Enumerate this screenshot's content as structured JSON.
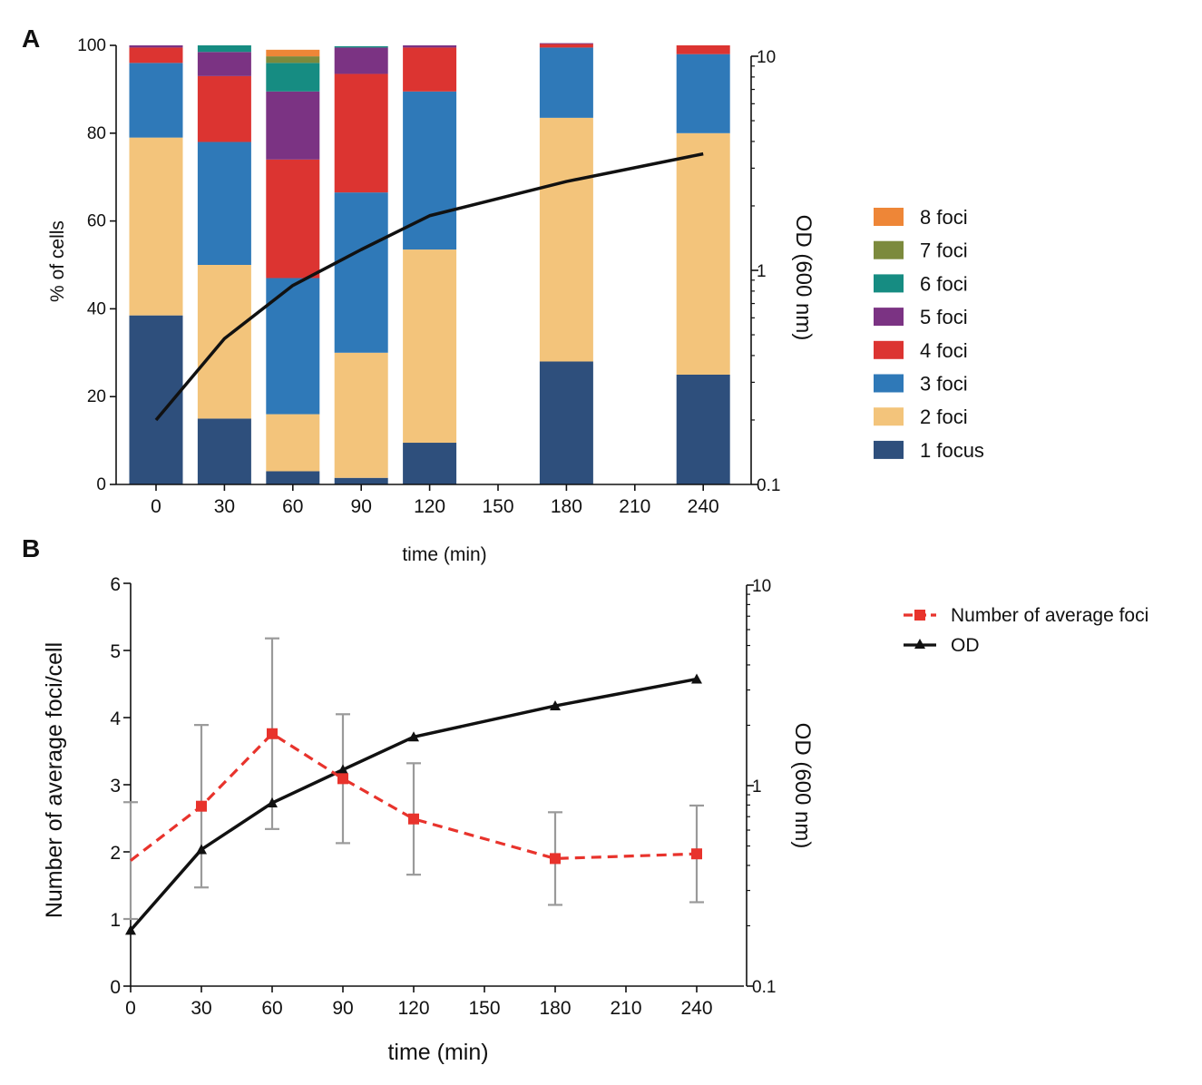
{
  "chart_data": [
    {
      "panel": "A",
      "type": "bar",
      "stacked": true,
      "xlabel": "time (min)",
      "ylabel": "% of cells",
      "ylabel_right": "OD (600 nm)",
      "ylim": [
        0,
        100
      ],
      "y_ticks": [
        "0",
        "20",
        "40",
        "60",
        "80",
        "100"
      ],
      "x_ticks": [
        "0",
        "30",
        "60",
        "90",
        "120",
        "150",
        "180",
        "210",
        "240"
      ],
      "y2_ticks": [
        "0.1",
        "1",
        "10"
      ],
      "y2_scale": "log",
      "y2lim": [
        0.1,
        10
      ],
      "categories": [
        0,
        30,
        60,
        90,
        120,
        180,
        240
      ],
      "series": [
        {
          "name": "1 focus",
          "color": "#2e4f7c",
          "values": [
            38.5,
            15,
            3,
            1.5,
            9.5,
            28,
            25
          ]
        },
        {
          "name": "2 foci",
          "color": "#f3c47b",
          "values": [
            40.5,
            35,
            13,
            28.5,
            44,
            55.5,
            55
          ]
        },
        {
          "name": "3 foci",
          "color": "#2f79b8",
          "values": [
            17,
            28,
            31,
            36.5,
            36,
            16,
            18
          ]
        },
        {
          "name": "4 foci",
          "color": "#dc3431",
          "values": [
            3.5,
            15,
            27,
            27,
            10,
            0.8,
            2
          ]
        },
        {
          "name": "5 foci",
          "color": "#7b3383",
          "values": [
            0.5,
            5.5,
            15.5,
            6,
            0.5,
            0.2,
            0
          ]
        },
        {
          "name": "6 foci",
          "color": "#168c82",
          "values": [
            0,
            1.5,
            6.5,
            0.3,
            0,
            0,
            0
          ]
        },
        {
          "name": "7 foci",
          "color": "#7c8a3d",
          "values": [
            0,
            0,
            1.5,
            0,
            0,
            0,
            0
          ]
        },
        {
          "name": "8 foci",
          "color": "#ee8637",
          "values": [
            0,
            0,
            1.5,
            0,
            0,
            0,
            0
          ]
        }
      ],
      "od_line": {
        "x": [
          0,
          30,
          60,
          90,
          120,
          180,
          240
        ],
        "y": [
          0.2,
          0.48,
          0.85,
          1.25,
          1.8,
          2.6,
          3.5
        ]
      }
    },
    {
      "panel": "B",
      "type": "line",
      "xlabel": "time (min)",
      "ylabel": "Number of average foci/cell",
      "ylabel_right": "OD (600 nm)",
      "ylim": [
        0,
        6
      ],
      "y_ticks": [
        "0",
        "1",
        "2",
        "3",
        "4",
        "5",
        "6"
      ],
      "x_ticks": [
        "0",
        "30",
        "60",
        "90",
        "120",
        "150",
        "180",
        "210",
        "240"
      ],
      "y2_ticks": [
        "0.1",
        "1",
        "10"
      ],
      "y2_scale": "log",
      "y2lim": [
        0.1,
        10
      ],
      "series": [
        {
          "name": "Number of average foci",
          "color": "#e8332c",
          "x": [
            0,
            30,
            60,
            90,
            120,
            180,
            240
          ],
          "y": [
            1.87,
            2.68,
            3.76,
            3.09,
            2.49,
            1.9,
            1.97
          ],
          "err": [
            0.87,
            1.21,
            1.42,
            0.96,
            0.83,
            0.69,
            0.72
          ]
        },
        {
          "name": "OD",
          "color": "#111111",
          "x": [
            0,
            30,
            60,
            90,
            120,
            180,
            240
          ],
          "y": [
            0.19,
            0.48,
            0.82,
            1.2,
            1.75,
            2.5,
            3.4
          ]
        }
      ]
    }
  ],
  "labels": {
    "panel_a": "A",
    "panel_b": "B"
  }
}
